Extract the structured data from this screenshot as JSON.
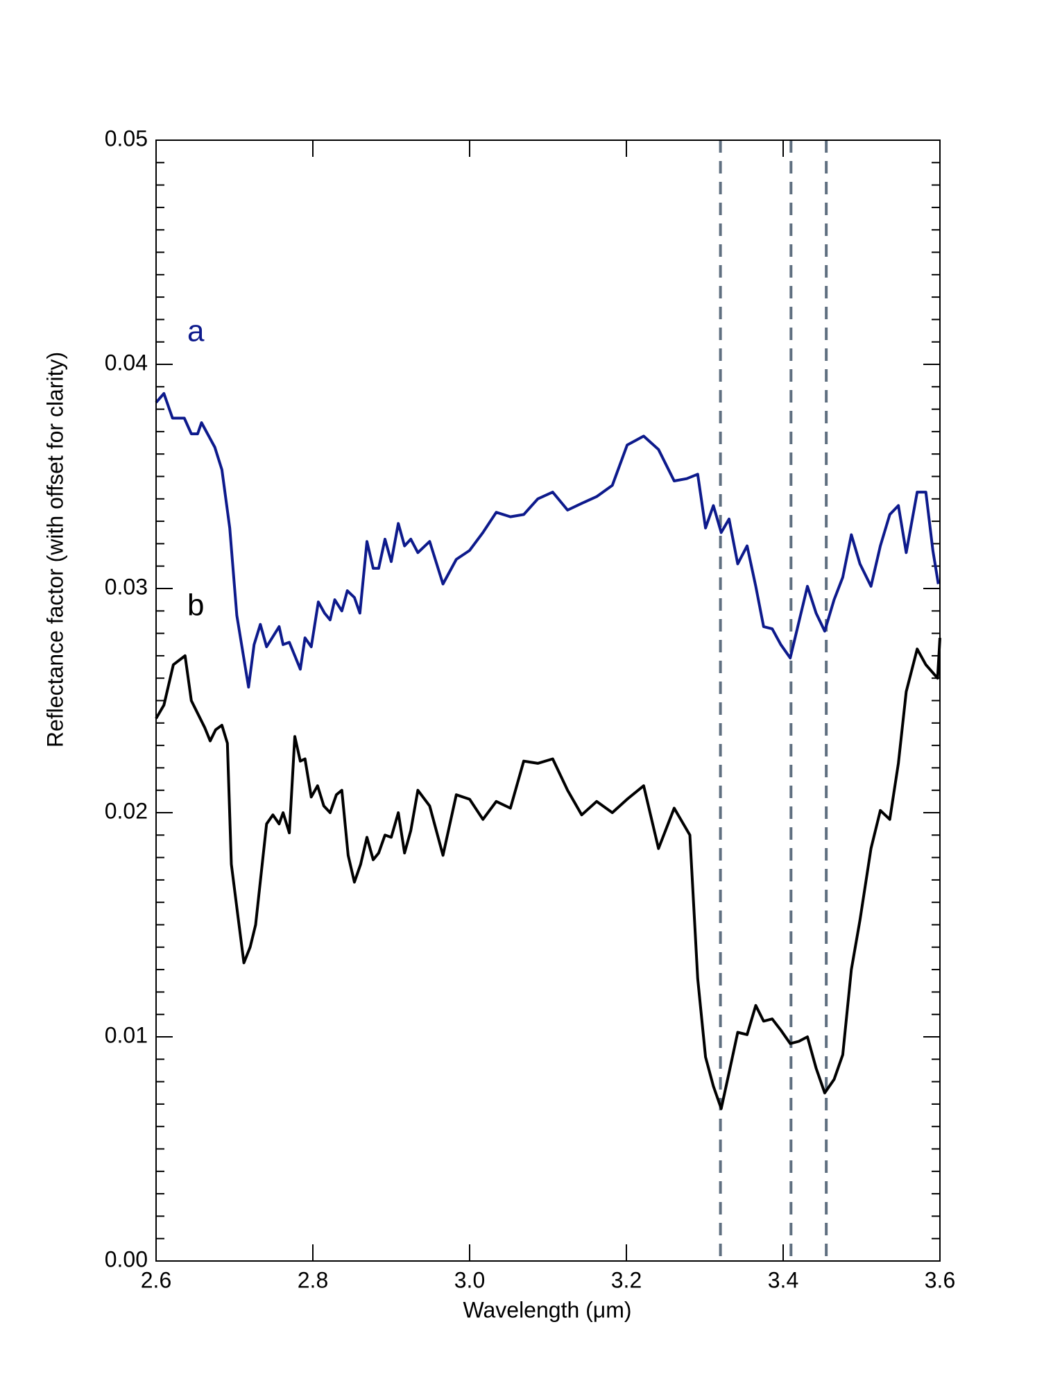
{
  "chart_data": {
    "type": "line",
    "xlabel": "Wavelength (μm)",
    "ylabel": "Reflectance factor (with offset for clarity)",
    "xlim": [
      2.6,
      3.6
    ],
    "xticks": [
      {
        "value": 2.6,
        "label": "2.6"
      },
      {
        "value": 2.8,
        "label": "2.8"
      },
      {
        "value": 3.0,
        "label": "3.0"
      },
      {
        "value": 3.2,
        "label": "3.2"
      },
      {
        "value": 3.4,
        "label": "3.4"
      },
      {
        "value": 3.6,
        "label": "3.6"
      }
    ],
    "ylim": [
      0,
      0.05
    ],
    "yticks": [
      {
        "value": 0,
        "label": "0.00"
      },
      {
        "value": 0.01,
        "label": "0.01"
      },
      {
        "value": 0.02,
        "label": "0.02"
      },
      {
        "value": 0.03,
        "label": "0.03"
      },
      {
        "value": 0.04,
        "label": "0.04"
      },
      {
        "value": 0.05,
        "label": "0.05"
      }
    ],
    "yminorticks": [
      0.001,
      0.002,
      0.003,
      0.004,
      0.005,
      0.006,
      0.007,
      0.008,
      0.009,
      0.011,
      0.012,
      0.013,
      0.014,
      0.015,
      0.016,
      0.017,
      0.018,
      0.019,
      0.021,
      0.022,
      0.023,
      0.024,
      0.025,
      0.026,
      0.027,
      0.028,
      0.029,
      0.031,
      0.032,
      0.033,
      0.034,
      0.035,
      0.036,
      0.037,
      0.038,
      0.039,
      0.041,
      0.042,
      0.043,
      0.044,
      0.045,
      0.046,
      0.047,
      0.048,
      0.049
    ],
    "vlines": [
      3.32,
      3.41,
      3.455
    ],
    "vline_color": "#5f6f80",
    "series": [
      {
        "name": "a",
        "color": "#0d1a8c",
        "x": [
          2.6,
          2.61,
          2.621,
          2.636,
          2.645,
          2.653,
          2.658,
          2.675,
          2.684,
          2.694,
          2.703,
          2.718,
          2.725,
          2.733,
          2.741,
          2.757,
          2.762,
          2.77,
          2.777,
          2.784,
          2.79,
          2.798,
          2.807,
          2.815,
          2.822,
          2.828,
          2.837,
          2.844,
          2.853,
          2.86,
          2.869,
          2.877,
          2.884,
          2.892,
          2.9,
          2.909,
          2.917,
          2.925,
          2.934,
          2.949,
          2.966,
          2.983,
          3.0,
          3.017,
          3.034,
          3.052,
          3.069,
          3.087,
          3.106,
          3.125,
          3.143,
          3.162,
          3.182,
          3.201,
          3.222,
          3.241,
          3.261,
          3.277,
          3.291,
          3.301,
          3.311,
          3.321,
          3.331,
          3.342,
          3.354,
          3.365,
          3.375,
          3.386,
          3.397,
          3.409,
          3.42,
          3.431,
          3.442,
          3.453,
          3.465,
          3.476,
          3.487,
          3.498,
          3.512,
          3.524,
          3.536,
          3.547,
          3.557,
          3.571,
          3.582,
          3.591,
          3.598
        ],
        "values": [
          0.0383,
          0.0387,
          0.0376,
          0.0376,
          0.0369,
          0.0369,
          0.0374,
          0.0363,
          0.0353,
          0.0327,
          0.0288,
          0.0256,
          0.0275,
          0.0284,
          0.0274,
          0.0283,
          0.0275,
          0.0276,
          0.027,
          0.0264,
          0.0278,
          0.0274,
          0.0294,
          0.0289,
          0.0286,
          0.0295,
          0.029,
          0.0299,
          0.0296,
          0.0289,
          0.0321,
          0.0309,
          0.0309,
          0.0322,
          0.0312,
          0.0329,
          0.0319,
          0.0322,
          0.0316,
          0.0321,
          0.0302,
          0.0313,
          0.0317,
          0.0325,
          0.0334,
          0.0332,
          0.0333,
          0.034,
          0.0343,
          0.0335,
          0.0338,
          0.0341,
          0.0346,
          0.0364,
          0.0368,
          0.0362,
          0.0348,
          0.0349,
          0.0351,
          0.0327,
          0.0337,
          0.0325,
          0.0331,
          0.0311,
          0.0319,
          0.0301,
          0.0283,
          0.0282,
          0.0275,
          0.0269,
          0.0285,
          0.0301,
          0.0289,
          0.0281,
          0.0295,
          0.0305,
          0.0324,
          0.0311,
          0.0301,
          0.0319,
          0.0333,
          0.0337,
          0.0316,
          0.0343,
          0.0343,
          0.0317,
          0.0302
        ]
      },
      {
        "name": "b",
        "color": "#000000",
        "x": [
          2.6,
          2.61,
          2.622,
          2.637,
          2.645,
          2.662,
          2.669,
          2.676,
          2.684,
          2.691,
          2.696,
          2.704,
          2.712,
          2.72,
          2.727,
          2.741,
          2.749,
          2.757,
          2.762,
          2.77,
          2.777,
          2.784,
          2.79,
          2.798,
          2.806,
          2.814,
          2.822,
          2.83,
          2.837,
          2.845,
          2.853,
          2.861,
          2.869,
          2.877,
          2.884,
          2.892,
          2.9,
          2.909,
          2.917,
          2.925,
          2.934,
          2.949,
          2.966,
          2.983,
          3.0,
          3.017,
          3.034,
          3.052,
          3.069,
          3.087,
          3.106,
          3.125,
          3.143,
          3.162,
          3.182,
          3.201,
          3.222,
          3.241,
          3.261,
          3.281,
          3.291,
          3.301,
          3.311,
          3.321,
          3.331,
          3.342,
          3.354,
          3.365,
          3.375,
          3.386,
          3.397,
          3.409,
          3.42,
          3.431,
          3.442,
          3.453,
          3.465,
          3.476,
          3.487,
          3.498,
          3.512,
          3.524,
          3.536,
          3.547,
          3.557,
          3.571,
          3.582,
          3.597,
          3.6
        ],
        "values": [
          0.0242,
          0.0248,
          0.0266,
          0.027,
          0.025,
          0.0238,
          0.0232,
          0.0237,
          0.0239,
          0.0231,
          0.0177,
          0.0155,
          0.0133,
          0.014,
          0.015,
          0.0195,
          0.0199,
          0.0195,
          0.02,
          0.0191,
          0.0234,
          0.0223,
          0.0224,
          0.0207,
          0.0212,
          0.0203,
          0.02,
          0.0208,
          0.021,
          0.0181,
          0.0169,
          0.0177,
          0.0189,
          0.0179,
          0.0182,
          0.019,
          0.0189,
          0.02,
          0.0182,
          0.0192,
          0.021,
          0.0203,
          0.0181,
          0.0208,
          0.0206,
          0.0197,
          0.0205,
          0.0202,
          0.0223,
          0.0222,
          0.0224,
          0.021,
          0.0199,
          0.0205,
          0.02,
          0.0206,
          0.0212,
          0.0184,
          0.0202,
          0.019,
          0.0126,
          0.0091,
          0.0078,
          0.0068,
          0.0084,
          0.0102,
          0.0101,
          0.0114,
          0.0107,
          0.0108,
          0.0103,
          0.0097,
          0.0098,
          0.01,
          0.0086,
          0.0075,
          0.0081,
          0.0092,
          0.013,
          0.0152,
          0.0184,
          0.0201,
          0.0197,
          0.0222,
          0.0254,
          0.0273,
          0.0266,
          0.026,
          0.0278
        ]
      }
    ]
  }
}
